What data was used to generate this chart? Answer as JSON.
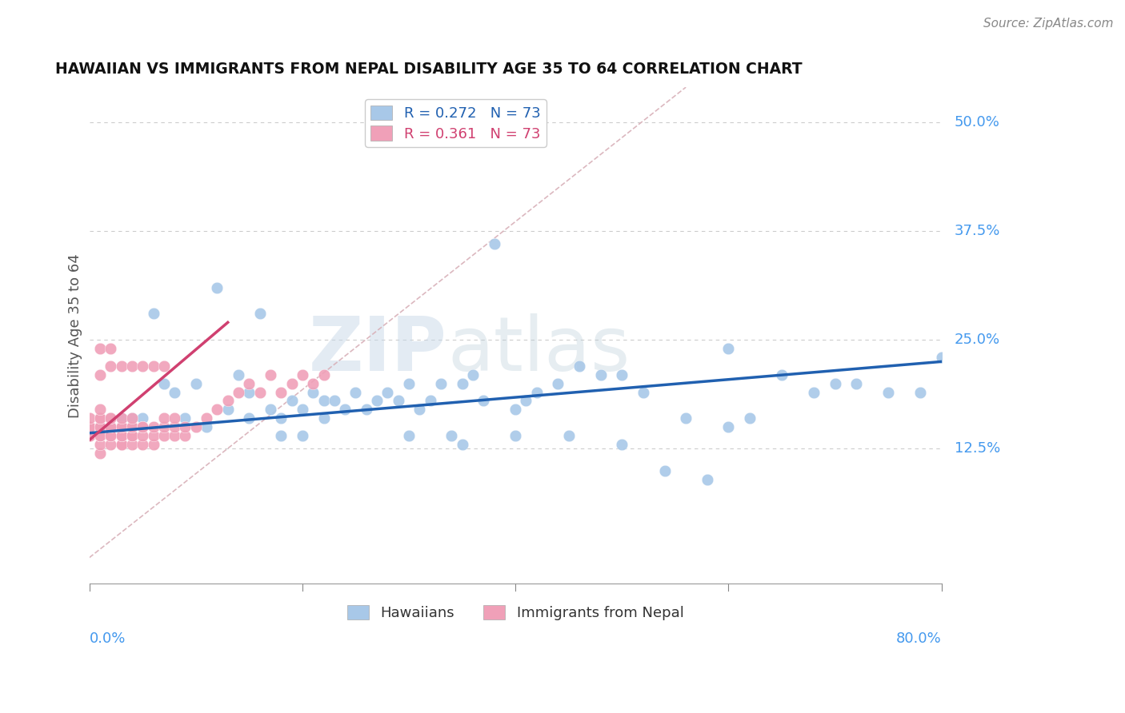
{
  "title": "HAWAIIAN VS IMMIGRANTS FROM NEPAL DISABILITY AGE 35 TO 64 CORRELATION CHART",
  "source": "Source: ZipAtlas.com",
  "ylabel": "Disability Age 35 to 64",
  "ytick_values": [
    0.0,
    0.125,
    0.25,
    0.375,
    0.5
  ],
  "ytick_labels": [
    "",
    "12.5%",
    "25.0%",
    "37.5%",
    "50.0%"
  ],
  "xlim": [
    0.0,
    0.8
  ],
  "ylim": [
    -0.03,
    0.54
  ],
  "r_hawaiian": 0.272,
  "n_hawaiian": 73,
  "r_nepal": 0.361,
  "n_nepal": 73,
  "color_hawaiian": "#a8c8e8",
  "color_nepal": "#f0a0b8",
  "line_color_hawaiian": "#2060b0",
  "line_color_nepal": "#d04070",
  "dashed_line_color": "#d8b0b8",
  "hawaiian_x": [
    0.01,
    0.01,
    0.02,
    0.02,
    0.03,
    0.03,
    0.03,
    0.04,
    0.04,
    0.05,
    0.06,
    0.07,
    0.08,
    0.09,
    0.1,
    0.11,
    0.12,
    0.13,
    0.14,
    0.15,
    0.16,
    0.17,
    0.18,
    0.19,
    0.2,
    0.21,
    0.22,
    0.23,
    0.24,
    0.25,
    0.26,
    0.27,
    0.28,
    0.29,
    0.3,
    0.31,
    0.32,
    0.33,
    0.34,
    0.35,
    0.36,
    0.37,
    0.38,
    0.4,
    0.41,
    0.42,
    0.44,
    0.45,
    0.46,
    0.48,
    0.5,
    0.52,
    0.54,
    0.56,
    0.58,
    0.6,
    0.62,
    0.65,
    0.68,
    0.7,
    0.72,
    0.75,
    0.78,
    0.8,
    0.15,
    0.18,
    0.2,
    0.22,
    0.3,
    0.35,
    0.4,
    0.5,
    0.6
  ],
  "hawaiian_y": [
    0.14,
    0.15,
    0.15,
    0.16,
    0.14,
    0.15,
    0.16,
    0.15,
    0.16,
    0.16,
    0.28,
    0.2,
    0.19,
    0.16,
    0.2,
    0.15,
    0.31,
    0.17,
    0.21,
    0.16,
    0.28,
    0.17,
    0.16,
    0.18,
    0.17,
    0.19,
    0.18,
    0.18,
    0.17,
    0.19,
    0.17,
    0.18,
    0.19,
    0.18,
    0.2,
    0.17,
    0.18,
    0.2,
    0.14,
    0.2,
    0.21,
    0.18,
    0.36,
    0.17,
    0.18,
    0.19,
    0.2,
    0.14,
    0.22,
    0.21,
    0.21,
    0.19,
    0.1,
    0.16,
    0.09,
    0.15,
    0.16,
    0.21,
    0.19,
    0.2,
    0.2,
    0.19,
    0.19,
    0.23,
    0.19,
    0.14,
    0.14,
    0.16,
    0.14,
    0.13,
    0.14,
    0.13,
    0.24
  ],
  "nepal_x": [
    0.0,
    0.0,
    0.0,
    0.0,
    0.0,
    0.01,
    0.01,
    0.01,
    0.01,
    0.01,
    0.01,
    0.01,
    0.01,
    0.01,
    0.01,
    0.01,
    0.01,
    0.01,
    0.02,
    0.02,
    0.02,
    0.02,
    0.02,
    0.02,
    0.02,
    0.02,
    0.02,
    0.03,
    0.03,
    0.03,
    0.03,
    0.03,
    0.03,
    0.03,
    0.03,
    0.04,
    0.04,
    0.04,
    0.04,
    0.04,
    0.04,
    0.04,
    0.05,
    0.05,
    0.05,
    0.05,
    0.05,
    0.06,
    0.06,
    0.06,
    0.06,
    0.07,
    0.07,
    0.07,
    0.07,
    0.08,
    0.08,
    0.08,
    0.09,
    0.09,
    0.1,
    0.11,
    0.12,
    0.13,
    0.14,
    0.15,
    0.16,
    0.17,
    0.18,
    0.19,
    0.2,
    0.21,
    0.22
  ],
  "nepal_y": [
    0.14,
    0.14,
    0.15,
    0.15,
    0.16,
    0.12,
    0.13,
    0.14,
    0.14,
    0.14,
    0.15,
    0.15,
    0.15,
    0.16,
    0.16,
    0.17,
    0.21,
    0.24,
    0.13,
    0.14,
    0.14,
    0.15,
    0.15,
    0.16,
    0.16,
    0.22,
    0.24,
    0.13,
    0.13,
    0.14,
    0.14,
    0.15,
    0.15,
    0.16,
    0.22,
    0.13,
    0.14,
    0.14,
    0.15,
    0.15,
    0.16,
    0.22,
    0.13,
    0.14,
    0.15,
    0.15,
    0.22,
    0.13,
    0.14,
    0.15,
    0.22,
    0.14,
    0.15,
    0.16,
    0.22,
    0.14,
    0.15,
    0.16,
    0.14,
    0.15,
    0.15,
    0.16,
    0.17,
    0.18,
    0.19,
    0.2,
    0.19,
    0.21,
    0.19,
    0.2,
    0.21,
    0.2,
    0.21
  ],
  "nepal_line_x0": 0.0,
  "nepal_line_y0": 0.135,
  "nepal_line_x1": 0.13,
  "nepal_line_y1": 0.27,
  "hawaiian_line_x0": 0.0,
  "hawaiian_line_y0": 0.143,
  "hawaiian_line_x1": 0.8,
  "hawaiian_line_y1": 0.225
}
